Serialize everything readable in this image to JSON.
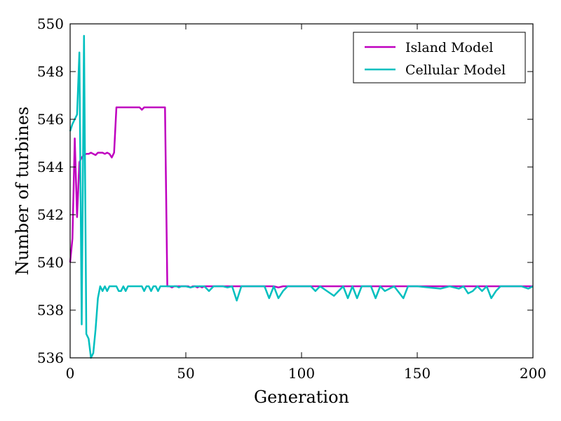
{
  "chart_data": {
    "type": "line",
    "xlabel": "Generation",
    "ylabel": "Number of turbines",
    "xlim": [
      0,
      200
    ],
    "ylim": [
      536,
      550
    ],
    "xticks": [
      "0",
      "50",
      "100",
      "150",
      "200"
    ],
    "yticks": [
      "536",
      "538",
      "540",
      "542",
      "544",
      "546",
      "548",
      "550"
    ],
    "legend_position": "top-right",
    "grid": false,
    "series": [
      {
        "name": "Island Model",
        "color": "#bf00bf",
        "x": [
          0,
          1,
          2,
          3,
          4,
          5,
          6,
          7,
          8,
          9,
          10,
          11,
          12,
          13,
          14,
          15,
          16,
          17,
          18,
          19,
          20,
          21,
          22,
          23,
          24,
          25,
          26,
          27,
          28,
          29,
          30,
          31,
          32,
          33,
          34,
          35,
          36,
          37,
          38,
          39,
          40,
          41,
          42,
          43,
          44,
          45,
          46,
          47,
          48,
          49,
          50,
          51,
          52,
          53,
          54,
          55,
          56,
          57,
          58,
          59,
          60,
          62,
          64,
          66,
          68,
          70,
          72,
          74,
          76,
          78,
          80,
          82,
          84,
          86,
          88,
          90,
          92,
          94,
          96,
          98,
          100,
          105,
          110,
          115,
          120,
          125,
          130,
          135,
          140,
          145,
          150,
          155,
          160,
          165,
          170,
          175,
          180,
          185,
          190,
          195,
          200
        ],
        "values": [
          540.0,
          541.0,
          545.2,
          541.9,
          544.2,
          544.4,
          544.5,
          544.55,
          544.55,
          544.6,
          544.55,
          544.5,
          544.6,
          544.6,
          544.6,
          544.55,
          544.6,
          544.55,
          544.4,
          544.6,
          546.5,
          546.5,
          546.5,
          546.5,
          546.5,
          546.5,
          546.5,
          546.5,
          546.5,
          546.5,
          546.5,
          546.4,
          546.5,
          546.5,
          546.5,
          546.5,
          546.5,
          546.5,
          546.5,
          546.5,
          546.5,
          546.5,
          539.0,
          539.0,
          538.95,
          539.0,
          539.0,
          539.0,
          539.0,
          539.0,
          539.0,
          539.0,
          538.95,
          539.0,
          539.0,
          538.95,
          539.0,
          538.95,
          539.0,
          539.0,
          539.0,
          539.0,
          539.0,
          539.0,
          539.0,
          539.0,
          539.0,
          539.0,
          539.0,
          539.0,
          539.0,
          539.0,
          539.0,
          539.0,
          539.0,
          538.95,
          539.0,
          539.0,
          539.0,
          539.0,
          539.0,
          539.0,
          539.0,
          539.0,
          539.0,
          539.0,
          539.0,
          539.0,
          539.0,
          539.0,
          539.0,
          539.0,
          539.0,
          539.0,
          539.0,
          539.0,
          539.0,
          539.0,
          539.0,
          539.0,
          539.0
        ]
      },
      {
        "name": "Cellular Model",
        "color": "#00bfbf",
        "x": [
          0,
          1,
          2,
          3,
          4,
          5,
          6,
          7,
          8,
          9,
          10,
          11,
          12,
          13,
          14,
          15,
          16,
          17,
          18,
          19,
          20,
          21,
          22,
          23,
          24,
          25,
          26,
          27,
          28,
          29,
          30,
          31,
          32,
          33,
          34,
          35,
          36,
          37,
          38,
          39,
          40,
          41,
          42,
          43,
          44,
          45,
          46,
          47,
          48,
          49,
          50,
          52,
          54,
          56,
          58,
          60,
          62,
          64,
          66,
          68,
          70,
          72,
          74,
          76,
          78,
          80,
          82,
          84,
          86,
          88,
          90,
          92,
          94,
          96,
          98,
          100,
          104,
          106,
          108,
          114,
          116,
          118,
          120,
          122,
          124,
          126,
          128,
          130,
          132,
          134,
          136,
          140,
          144,
          146,
          150,
          160,
          164,
          168,
          170,
          172,
          174,
          176,
          178,
          180,
          182,
          184,
          186,
          190,
          195,
          198,
          200
        ],
        "values": [
          545.5,
          545.8,
          546.0,
          546.2,
          548.8,
          537.4,
          549.5,
          537.0,
          536.8,
          536.0,
          536.2,
          537.2,
          538.5,
          539.0,
          538.8,
          539.0,
          538.8,
          539.0,
          539.0,
          539.0,
          539.0,
          538.8,
          538.8,
          539.0,
          538.8,
          539.0,
          539.0,
          539.0,
          539.0,
          539.0,
          539.0,
          539.0,
          538.8,
          539.0,
          539.0,
          538.8,
          539.0,
          539.0,
          538.8,
          539.0,
          539.0,
          539.0,
          539.0,
          539.0,
          539.0,
          539.0,
          539.0,
          538.95,
          539.0,
          539.0,
          539.0,
          538.95,
          539.0,
          539.0,
          539.0,
          538.8,
          539.0,
          539.0,
          539.0,
          538.95,
          539.0,
          538.4,
          539.0,
          539.0,
          539.0,
          539.0,
          539.0,
          539.0,
          538.5,
          539.0,
          538.5,
          538.8,
          539.0,
          539.0,
          539.0,
          539.0,
          539.0,
          538.8,
          539.0,
          538.6,
          538.8,
          539.0,
          538.5,
          539.0,
          538.5,
          539.0,
          539.0,
          539.0,
          538.5,
          539.0,
          538.8,
          539.0,
          538.5,
          539.0,
          539.0,
          538.9,
          539.0,
          538.9,
          539.0,
          538.7,
          538.8,
          539.0,
          538.8,
          539.0,
          538.5,
          538.8,
          539.0,
          539.0,
          539.0,
          538.9,
          539.0
        ]
      }
    ]
  }
}
